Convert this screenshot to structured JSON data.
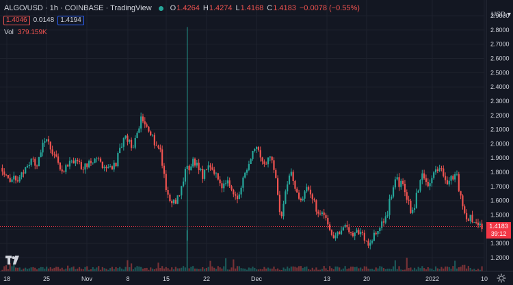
{
  "header": {
    "symbol": "ALGO/USD",
    "interval": "1h",
    "exchange": "COINBASE",
    "source": "TradingView",
    "ohlc": [
      {
        "key": "O",
        "value": "1.4264"
      },
      {
        "key": "H",
        "value": "1.4274"
      },
      {
        "key": "L",
        "value": "1.4168"
      },
      {
        "key": "C",
        "value": "1.4183"
      }
    ],
    "change": "−0.0078 (−0.55%)"
  },
  "quote": {
    "bid": "1.4046",
    "spread": "0.0148",
    "ask": "1.4194"
  },
  "volume": {
    "label": "Vol",
    "value": "379.159K"
  },
  "price_axis": {
    "currency": "USD",
    "last_price": "1.4183",
    "countdown": "39:12",
    "ticks": [
      "2.9000",
      "2.8000",
      "2.7000",
      "2.6000",
      "2.5000",
      "2.4000",
      "2.3000",
      "2.2000",
      "2.1000",
      "2.0000",
      "1.9000",
      "1.8000",
      "1.7000",
      "1.6000",
      "1.5000",
      "1.4000",
      "1.3000",
      "1.2000"
    ]
  },
  "time_axis": {
    "labels": [
      "18",
      "25",
      "Nov",
      "8",
      "15",
      "22",
      "Dec",
      "13",
      "20",
      "2022",
      "10"
    ]
  },
  "icons": {
    "logo": "tradingview-logo-icon",
    "settings": "gear-icon"
  },
  "colors": {
    "background": "#131722",
    "up": "#26a69a",
    "down": "#ef5350",
    "grid": "#1e222d",
    "text": "#d1d4dc"
  },
  "chart_data": {
    "type": "candlestick",
    "ylim": [
      1.15,
      2.95
    ],
    "x_range_ticks": [
      "18",
      "25",
      "Nov",
      "8",
      "15",
      "22",
      "Dec",
      "13",
      "20",
      "2022",
      "10"
    ],
    "close_path": [
      {
        "x": "18",
        "y": 1.83
      },
      {
        "x": "",
        "y": 1.74
      },
      {
        "x": "",
        "y": 1.76
      },
      {
        "x": "",
        "y": 1.88
      },
      {
        "x": "",
        "y": 1.85
      },
      {
        "x": "",
        "y": 2.07
      },
      {
        "x": "25",
        "y": 1.9
      },
      {
        "x": "",
        "y": 1.82
      },
      {
        "x": "",
        "y": 1.88
      },
      {
        "x": "",
        "y": 1.84
      },
      {
        "x": "Nov",
        "y": 1.86
      },
      {
        "x": "",
        "y": 1.88
      },
      {
        "x": "",
        "y": 1.83
      },
      {
        "x": "",
        "y": 1.86
      },
      {
        "x": "8",
        "y": 2.04
      },
      {
        "x": "",
        "y": 1.98
      },
      {
        "x": "",
        "y": 2.2
      },
      {
        "x": "",
        "y": 2.05
      },
      {
        "x": "",
        "y": 1.98
      },
      {
        "x": "15",
        "y": 1.62
      },
      {
        "x": "",
        "y": 1.6
      },
      {
        "x": "",
        "y": 1.8
      },
      {
        "x": "",
        "y": 1.88
      },
      {
        "x": "22",
        "y": 1.78
      },
      {
        "x": "",
        "y": 1.85
      },
      {
        "x": "",
        "y": 1.7
      },
      {
        "x": "",
        "y": 1.72
      },
      {
        "x": "",
        "y": 1.6
      },
      {
        "x": "",
        "y": 1.83
      },
      {
        "x": "",
        "y": 2.0
      },
      {
        "x": "",
        "y": 1.87
      },
      {
        "x": "Dec",
        "y": 1.9
      },
      {
        "x": "",
        "y": 1.46
      },
      {
        "x": "",
        "y": 1.84
      },
      {
        "x": "",
        "y": 1.6
      },
      {
        "x": "",
        "y": 1.68
      },
      {
        "x": "",
        "y": 1.55
      },
      {
        "x": "",
        "y": 1.5
      },
      {
        "x": "13",
        "y": 1.34
      },
      {
        "x": "",
        "y": 1.42
      },
      {
        "x": "",
        "y": 1.38
      },
      {
        "x": "",
        "y": 1.38
      },
      {
        "x": "20",
        "y": 1.3
      },
      {
        "x": "",
        "y": 1.38
      },
      {
        "x": "",
        "y": 1.48
      },
      {
        "x": "",
        "y": 1.75
      },
      {
        "x": "",
        "y": 1.7
      },
      {
        "x": "",
        "y": 1.5
      },
      {
        "x": "",
        "y": 1.78
      },
      {
        "x": "",
        "y": 1.72
      },
      {
        "x": "",
        "y": 1.84
      },
      {
        "x": "2022",
        "y": 1.72
      },
      {
        "x": "",
        "y": 1.8
      },
      {
        "x": "",
        "y": 1.5
      },
      {
        "x": "",
        "y": 1.46
      },
      {
        "x": "10",
        "y": 1.42
      }
    ],
    "spike": {
      "x": "15",
      "high": 2.82,
      "low": 1.32
    },
    "last_price": 1.4183
  }
}
